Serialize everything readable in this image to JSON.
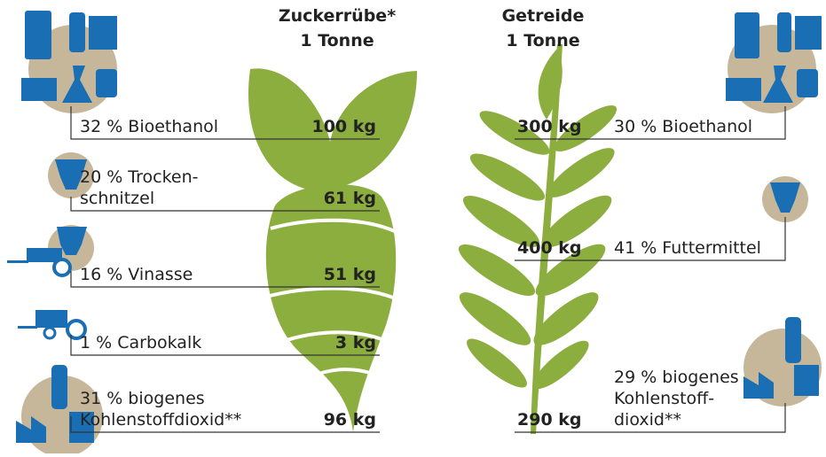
{
  "beet": {
    "title": "Zuckerrübe*",
    "subtitle": "1 Tonne",
    "rows": [
      {
        "label": [
          "32 % Bioethanol"
        ],
        "amount": "100 kg"
      },
      {
        "label": [
          "20 % Trocken-",
          "schnitzel"
        ],
        "amount": "61 kg"
      },
      {
        "label": [
          "16 % Vinasse"
        ],
        "amount": "51 kg"
      },
      {
        "label": [
          "1 % Carbokalk"
        ],
        "amount": "3 kg"
      },
      {
        "label": [
          "31 % biogenes",
          "Kohlenstoffdioxid**"
        ],
        "amount": "96 kg"
      }
    ]
  },
  "grain": {
    "title": "Getreide",
    "subtitle": "1 Tonne",
    "rows": [
      {
        "label": [
          "30 % Bioethanol"
        ],
        "amount": "300 kg"
      },
      {
        "label": [
          "41 % Futtermittel"
        ],
        "amount": "400 kg"
      },
      {
        "label": [
          "29 % biogenes",
          "Kohlenstoff-",
          "dioxid**"
        ],
        "amount": "290 kg"
      }
    ]
  }
}
